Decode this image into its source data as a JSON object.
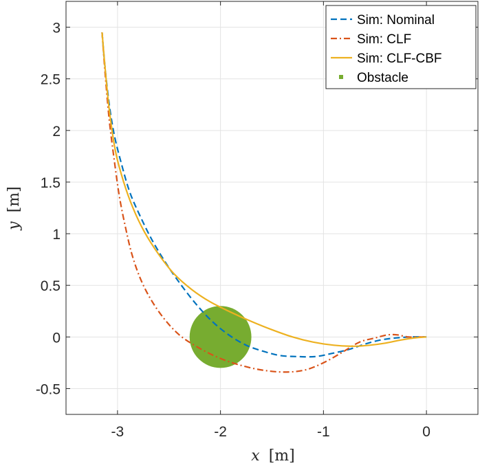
{
  "chart_data": {
    "type": "line",
    "title": "",
    "xlabel_var": "x",
    "xlabel_unit": "[m]",
    "ylabel_var": "y",
    "ylabel_unit": "[m]",
    "xlim": [
      -3.5,
      0.5
    ],
    "ylim": [
      -0.75,
      3.25
    ],
    "grid": true,
    "legend_position": "top-right",
    "x_ticks": [
      -3,
      -2,
      -1,
      0
    ],
    "x_tick_labels": [
      "-3",
      "-2",
      "-1",
      "0"
    ],
    "y_ticks": [
      -0.5,
      0,
      0.5,
      1,
      1.5,
      2,
      2.5,
      3
    ],
    "y_tick_labels": [
      "-0.5",
      "0",
      "0.5",
      "1",
      "1.5",
      "2",
      "2.5",
      "3"
    ],
    "series": [
      {
        "name": "Sim: Nominal",
        "color": "#0072BD",
        "dash": "dashed",
        "x": [
          -3.15,
          -3.12,
          -3.08,
          -3.03,
          -2.96,
          -2.88,
          -2.78,
          -2.66,
          -2.52,
          -2.38,
          -2.23,
          -2.08,
          -1.92,
          -1.75,
          -1.58,
          -1.42,
          -1.25,
          -1.08,
          -0.92,
          -0.75,
          -0.6,
          -0.45,
          -0.3,
          -0.15,
          0.0
        ],
        "y": [
          2.95,
          2.6,
          2.25,
          1.95,
          1.67,
          1.4,
          1.17,
          0.93,
          0.7,
          0.5,
          0.31,
          0.15,
          0.02,
          -0.08,
          -0.14,
          -0.18,
          -0.19,
          -0.19,
          -0.16,
          -0.12,
          -0.07,
          -0.03,
          -0.01,
          0.0,
          0.0
        ]
      },
      {
        "name": "Sim: CLF",
        "color": "#D95319",
        "dash": "dashdot",
        "x": [
          -3.15,
          -3.12,
          -3.08,
          -3.03,
          -2.98,
          -2.92,
          -2.86,
          -2.78,
          -2.68,
          -2.55,
          -2.4,
          -2.22,
          -2.02,
          -1.82,
          -1.6,
          -1.38,
          -1.18,
          -1.0,
          -0.82,
          -0.65,
          -0.5,
          -0.38,
          -0.28,
          -0.18,
          -0.08,
          0.0
        ],
        "y": [
          2.95,
          2.55,
          2.1,
          1.7,
          1.35,
          1.05,
          0.8,
          0.57,
          0.37,
          0.18,
          0.02,
          -0.1,
          -0.2,
          -0.27,
          -0.32,
          -0.34,
          -0.32,
          -0.25,
          -0.15,
          -0.05,
          -0.01,
          0.02,
          0.02,
          0.0,
          0.0,
          0.0
        ]
      },
      {
        "name": "Sim: CLF-CBF",
        "color": "#EDB120",
        "dash": "solid",
        "x": [
          -3.15,
          -3.12,
          -3.08,
          -3.02,
          -2.94,
          -2.85,
          -2.74,
          -2.6,
          -2.45,
          -2.28,
          -2.1,
          -1.9,
          -1.7,
          -1.5,
          -1.3,
          -1.1,
          -0.9,
          -0.7,
          -0.55,
          -0.4,
          -0.25,
          -0.12,
          0.0
        ],
        "y": [
          2.95,
          2.6,
          2.2,
          1.8,
          1.5,
          1.25,
          1.02,
          0.8,
          0.61,
          0.46,
          0.34,
          0.24,
          0.15,
          0.07,
          0.0,
          -0.05,
          -0.08,
          -0.09,
          -0.08,
          -0.06,
          -0.03,
          -0.01,
          0.0
        ]
      }
    ],
    "obstacle": {
      "name": "Obstacle",
      "color": "#77AC30",
      "center": [
        -2.0,
        0.0
      ],
      "radius": 0.3
    }
  }
}
